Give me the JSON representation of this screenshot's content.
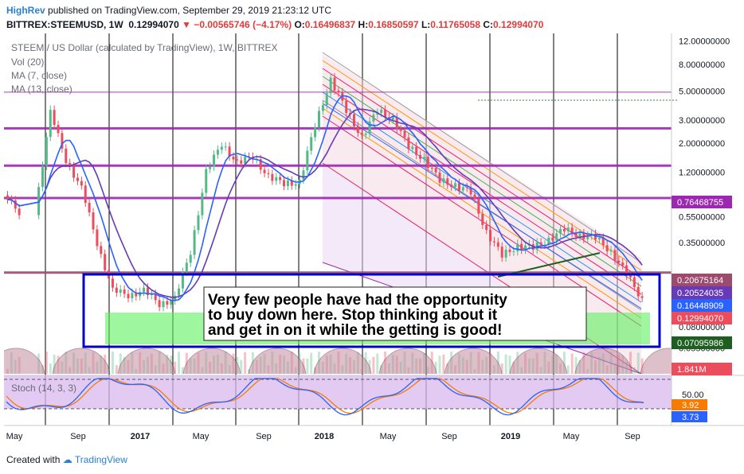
{
  "header": {
    "author": "HighRev",
    "published": "published on TradingView.com, September 29, 2019 21:23:12 UTC",
    "symbol": "BITTREX:STEEMUSD, 1W",
    "price": "0.12994070",
    "change": "−0.00565746 (−4.17%)",
    "open_label": "O:",
    "open": "0.16496837",
    "high_label": "H:",
    "high": "0.16850597",
    "low_label": "L:",
    "low": "0.11765058",
    "close_label": "C:",
    "close": "0.12994070"
  },
  "legend": {
    "title": "STEEM / US Dollar (calculated by TradingView), 1W, BITTREX",
    "vol": "Vol (20)",
    "ma7": "MA (7, close)",
    "ma13": "MA (13, close)"
  },
  "annotation": {
    "line1": "Very few people have had the opportunity",
    "line2": "to buy down here. Stop thinking about it",
    "line3": "and get in on it while the getting is good!"
  },
  "stoch": {
    "title": "Stoch (14, 3, 3)",
    "level": "50.00",
    "k": "3.92",
    "d": "3.73"
  },
  "footer": {
    "created_with": "Created with",
    "brand": "TradingView"
  },
  "colors": {
    "up": "#53b987",
    "down": "#eb4d5c",
    "ma7": "#2962ff",
    "ma13": "#673ab7",
    "hline": "#9c27b0",
    "annotation_box": "#0000cc"
  },
  "chart_data": {
    "type": "candlestick",
    "scale": "log",
    "ylim": [
      0.045,
      13
    ],
    "y_ticks": [
      "12.00000000",
      "8.00000000",
      "5.00000000",
      "3.00000000",
      "2.00000000",
      "1.20000000",
      "0.55000000",
      "0.35000000",
      "0.08000000",
      "0.05500000"
    ],
    "x_ticks": [
      "May",
      "Sep",
      "2017",
      "May",
      "Sep",
      "2018",
      "May",
      "Sep",
      "2019",
      "May",
      "Sep"
    ],
    "x_range": [
      "2016-04",
      "2019-09"
    ],
    "price_labels": [
      {
        "text": "0.76468755",
        "value": 0.76468755,
        "color": "#9c27b0"
      },
      {
        "text": "0.20675164",
        "value": 0.20675164,
        "color": "#9c4a6d"
      },
      {
        "text": "0.20524035",
        "value": 0.20524035,
        "color": "#673ab7"
      },
      {
        "text": "0.16448909",
        "value": 0.16448909,
        "color": "#2962ff"
      },
      {
        "text": "0.12994070",
        "value": 0.1299407,
        "color": "#eb4d5c"
      },
      {
        "text": "0.07095986",
        "value": 0.07095986,
        "color": "#1e5e20"
      },
      {
        "text": "1.841M",
        "value": null,
        "color": "#eb4d5c"
      }
    ],
    "horizontal_lines": [
      4.9,
      2.6,
      1.35,
      0.76468755,
      0.20675164
    ],
    "weekly_close_approx": [
      {
        "date": "2016-04",
        "close": 0.8
      },
      {
        "date": "2016-06",
        "close": 0.6
      },
      {
        "date": "2016-07",
        "close": 3.4
      },
      {
        "date": "2016-08",
        "close": 1.5
      },
      {
        "date": "2016-09",
        "close": 0.9
      },
      {
        "date": "2016-10",
        "close": 0.35
      },
      {
        "date": "2016-11",
        "close": 0.15
      },
      {
        "date": "2016-12",
        "close": 0.14
      },
      {
        "date": "2017-01",
        "close": 0.15
      },
      {
        "date": "2017-02",
        "close": 0.12
      },
      {
        "date": "2017-03",
        "close": 0.13
      },
      {
        "date": "2017-04",
        "close": 0.3
      },
      {
        "date": "2017-05",
        "close": 1.2
      },
      {
        "date": "2017-06",
        "close": 2.0
      },
      {
        "date": "2017-07",
        "close": 1.4
      },
      {
        "date": "2017-08",
        "close": 1.6
      },
      {
        "date": "2017-09",
        "close": 1.1
      },
      {
        "date": "2017-10",
        "close": 1.0
      },
      {
        "date": "2017-11",
        "close": 1.0
      },
      {
        "date": "2017-12",
        "close": 2.8
      },
      {
        "date": "2018-01",
        "close": 6.0
      },
      {
        "date": "2018-02",
        "close": 3.6
      },
      {
        "date": "2018-03",
        "close": 2.2
      },
      {
        "date": "2018-04",
        "close": 3.6
      },
      {
        "date": "2018-05",
        "close": 3.0
      },
      {
        "date": "2018-06",
        "close": 1.9
      },
      {
        "date": "2018-07",
        "close": 1.5
      },
      {
        "date": "2018-08",
        "close": 1.05
      },
      {
        "date": "2018-09",
        "close": 0.95
      },
      {
        "date": "2018-10",
        "close": 0.85
      },
      {
        "date": "2018-11",
        "close": 0.42
      },
      {
        "date": "2018-12",
        "close": 0.28
      },
      {
        "date": "2019-01",
        "close": 0.33
      },
      {
        "date": "2019-02",
        "close": 0.32
      },
      {
        "date": "2019-03",
        "close": 0.37
      },
      {
        "date": "2019-04",
        "close": 0.44
      },
      {
        "date": "2019-05",
        "close": 0.4
      },
      {
        "date": "2019-06",
        "close": 0.38
      },
      {
        "date": "2019-07",
        "close": 0.3
      },
      {
        "date": "2019-08",
        "close": 0.2
      },
      {
        "date": "2019-09",
        "close": 0.13
      }
    ]
  }
}
